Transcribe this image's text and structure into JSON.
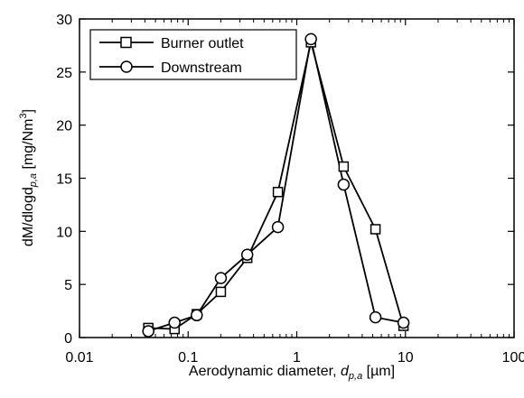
{
  "chart_data": {
    "type": "line",
    "x_scale": "log",
    "xlim": [
      0.01,
      100
    ],
    "ylim": [
      0,
      30
    ],
    "x_ticks": [
      "0.01",
      "0.1",
      "1",
      "10",
      "100"
    ],
    "y_ticks": [
      "0",
      "5",
      "10",
      "15",
      "20",
      "25",
      "30"
    ],
    "xlabel": {
      "main": "Aerodynamic diameter, ",
      "sym": "d",
      "sub": "p,a",
      "unit": " [µm]"
    },
    "ylabel": {
      "main": "dM/dlogd",
      "sub": "p,a",
      "unit": "  [mg/Nm",
      "sup": "3",
      "close": "]"
    },
    "legend": {
      "position": "top-left"
    },
    "grid": false,
    "series": [
      {
        "name": "Burner outlet",
        "marker": "square",
        "x": [
          0.043,
          0.075,
          0.12,
          0.2,
          0.35,
          0.67,
          1.35,
          2.7,
          5.3,
          9.6
        ],
        "y": [
          0.9,
          0.8,
          2.2,
          4.3,
          7.5,
          13.7,
          27.8,
          16.1,
          10.2,
          1.1
        ]
      },
      {
        "name": "Downstream",
        "marker": "circle",
        "x": [
          0.043,
          0.075,
          0.12,
          0.2,
          0.35,
          0.67,
          1.35,
          2.7,
          5.3,
          9.6
        ],
        "y": [
          0.6,
          1.4,
          2.1,
          5.6,
          7.8,
          10.4,
          28.1,
          14.4,
          1.9,
          1.4
        ]
      }
    ]
  }
}
